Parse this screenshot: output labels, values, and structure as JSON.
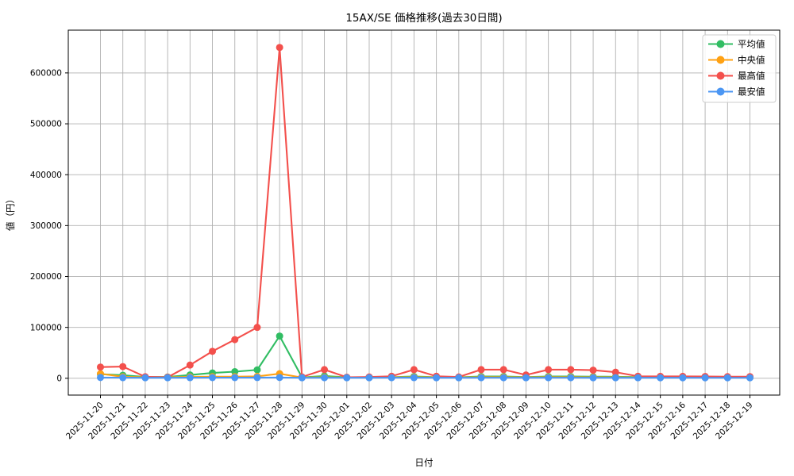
{
  "chart_data": {
    "type": "line",
    "title": "15AX/SE 価格推移(過去30日間)",
    "xlabel": "日付",
    "ylabel": "値（円）",
    "grid": true,
    "grid_color": "#b0b0b0",
    "axes_color": "#000000",
    "legend_position": "upper right",
    "legend_border_color": "#cccccc",
    "ylim": [
      -33000,
      684000
    ],
    "yticks": [
      0,
      100000,
      200000,
      300000,
      400000,
      500000,
      600000
    ],
    "x": [
      "2025-11-20",
      "2025-11-21",
      "2025-11-22",
      "2025-11-23",
      "2025-11-24",
      "2025-11-25",
      "2025-11-26",
      "2025-11-27",
      "2025-11-28",
      "2025-11-29",
      "2025-11-30",
      "2025-12-01",
      "2025-12-02",
      "2025-12-03",
      "2025-12-04",
      "2025-12-05",
      "2025-12-06",
      "2025-12-07",
      "2025-12-08",
      "2025-12-09",
      "2025-12-10",
      "2025-12-11",
      "2025-12-12",
      "2025-12-13",
      "2025-12-14",
      "2025-12-15",
      "2025-12-16",
      "2025-12-17",
      "2025-12-18",
      "2025-12-19"
    ],
    "series": [
      {
        "key": "average",
        "name": "平均値",
        "color": "#31bd63",
        "values": [
          8000,
          6000,
          2500,
          2500,
          6500,
          10500,
          13000,
          16500,
          83000,
          1800,
          4500,
          1800,
          2000,
          2200,
          3500,
          2200,
          2000,
          3500,
          3500,
          2400,
          3500,
          3500,
          3200,
          3000,
          2400,
          2300,
          2300,
          2200,
          2000,
          2000
        ]
      },
      {
        "key": "median",
        "name": "中央値",
        "color": "#ffa113",
        "values": [
          9000,
          3000,
          2000,
          2000,
          2800,
          3200,
          3200,
          3800,
          9000,
          1500,
          2000,
          1500,
          1700,
          1900,
          2200,
          1800,
          1700,
          2200,
          2200,
          1800,
          2200,
          2200,
          2000,
          1900,
          1700,
          1700,
          1700,
          1600,
          1500,
          1500
        ]
      },
      {
        "key": "max",
        "name": "最高値",
        "color": "#f3504c",
        "values": [
          22000,
          23000,
          3000,
          2000,
          26000,
          53000,
          76000,
          100000,
          650000,
          2600,
          17000,
          2000,
          2600,
          4000,
          17000,
          4000,
          2600,
          17000,
          17000,
          6500,
          17000,
          17000,
          16000,
          12000,
          4000,
          3800,
          3800,
          3500,
          3200,
          3200
        ]
      },
      {
        "key": "min",
        "name": "最安値",
        "color": "#4b96f3",
        "values": [
          1500,
          1200,
          1000,
          1000,
          1200,
          1300,
          1300,
          1400,
          1500,
          1000,
          1100,
          1000,
          1000,
          1100,
          1200,
          1000,
          1000,
          1100,
          1100,
          1000,
          1100,
          1100,
          1000,
          1000,
          1000,
          950,
          950,
          900,
          900,
          900
        ]
      }
    ]
  }
}
